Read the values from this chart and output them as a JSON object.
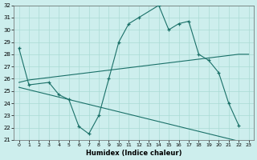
{
  "xlabel": "Humidex (Indice chaleur)",
  "bg_color": "#cdeeed",
  "grid_color": "#aadad4",
  "line_color": "#1a7068",
  "ylim_min": 21,
  "ylim_max": 32,
  "yticks": [
    21,
    22,
    23,
    24,
    25,
    26,
    27,
    28,
    29,
    30,
    31,
    32
  ],
  "xticks": [
    0,
    1,
    2,
    3,
    4,
    5,
    6,
    7,
    8,
    9,
    10,
    11,
    12,
    13,
    14,
    15,
    16,
    17,
    18,
    19,
    20,
    21,
    22,
    23
  ],
  "x_main": [
    0,
    1,
    3,
    4,
    5,
    6,
    7,
    8,
    9,
    10,
    11,
    12,
    14,
    15,
    16,
    17,
    18,
    19,
    20,
    21,
    22
  ],
  "y_main": [
    28.5,
    25.5,
    25.7,
    24.7,
    24.3,
    22.1,
    21.5,
    23.0,
    26.0,
    29.0,
    30.5,
    31.0,
    32.0,
    30.0,
    30.5,
    30.7,
    28.0,
    27.5,
    26.5,
    24.0,
    22.2
  ],
  "x_upper": [
    0,
    1,
    2,
    3,
    4,
    5,
    6,
    7,
    8,
    9,
    10,
    11,
    12,
    13,
    14,
    15,
    16,
    17,
    18,
    19,
    20,
    21,
    22,
    23
  ],
  "y_upper": [
    25.7,
    25.9,
    26.0,
    26.1,
    26.2,
    26.3,
    26.4,
    26.5,
    26.6,
    26.7,
    26.8,
    26.9,
    27.0,
    27.1,
    27.2,
    27.3,
    27.4,
    27.5,
    27.6,
    27.7,
    27.8,
    27.9,
    28.0,
    28.0
  ],
  "x_lower": [
    0,
    1,
    2,
    3,
    4,
    5,
    6,
    7,
    8,
    9,
    10,
    11,
    12,
    13,
    14,
    15,
    16,
    17,
    18,
    19,
    20,
    21,
    22,
    23
  ],
  "y_lower": [
    25.3,
    25.1,
    24.9,
    24.7,
    24.5,
    24.3,
    24.1,
    23.9,
    23.7,
    23.5,
    23.3,
    23.1,
    22.9,
    22.7,
    22.5,
    22.3,
    22.1,
    21.9,
    21.7,
    21.5,
    21.3,
    21.1,
    20.9,
    20.7
  ]
}
